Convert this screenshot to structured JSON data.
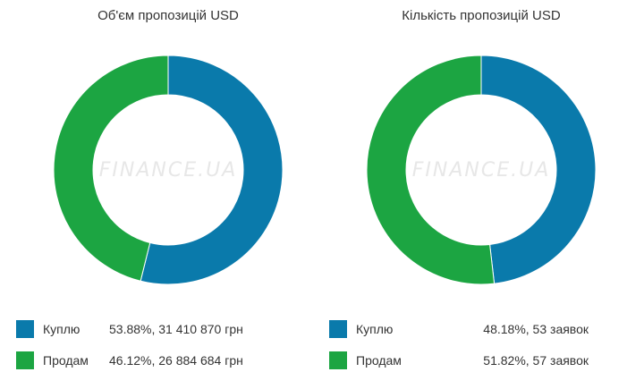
{
  "watermark": "FINANCE.UA",
  "colors": {
    "buy": "#0a7aab",
    "sell": "#1ca542"
  },
  "chart_data": [
    {
      "type": "pie",
      "title": "Об'єм пропозицій USD",
      "categories": [
        "Куплю",
        "Продам"
      ],
      "values": [
        53.88,
        46.12
      ],
      "legend": [
        {
          "label": "Куплю",
          "value_text": "53.88%, 31 410 870 грн"
        },
        {
          "label": "Продам",
          "value_text": "46.12%, 26 884 684 грн"
        }
      ],
      "legend_position": "bottom"
    },
    {
      "type": "pie",
      "title": "Кількість пропозицій USD",
      "categories": [
        "Куплю",
        "Продам"
      ],
      "values": [
        48.18,
        51.82
      ],
      "legend": [
        {
          "label": "Куплю",
          "value_text": "48.18%, 53 заявок"
        },
        {
          "label": "Продам",
          "value_text": "51.82%, 57 заявок"
        }
      ],
      "legend_position": "bottom"
    }
  ]
}
